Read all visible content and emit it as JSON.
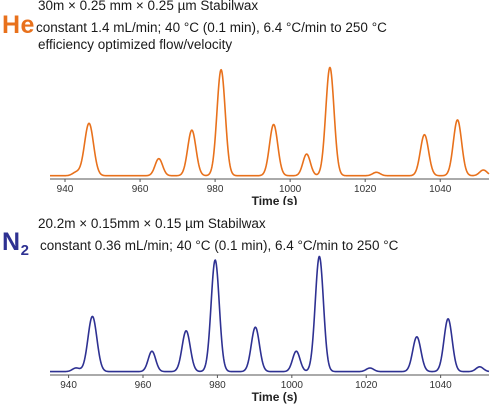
{
  "chart_data": [
    {
      "type": "line",
      "gas_label": "He",
      "gas_sub": "",
      "column": "30m × 0.25 mm × 0.25 µm Stabilwax",
      "conditions": "constant 1.4 mL/min;  40 °C (0.1 min), 6.4 °C/min to 250 °C",
      "note": "efficiency optimized flow/velocity",
      "xlabel": "Time (s)",
      "xlim": [
        936,
        1053
      ],
      "xticks": [
        940,
        960,
        980,
        1000,
        1020,
        1040
      ],
      "ylim": [
        0,
        100
      ],
      "color": "#e8711c",
      "baseline_y": 2,
      "peaks": [
        {
          "x": 946.4,
          "h": 46,
          "w": 1.2
        },
        {
          "x": 965.0,
          "h": 15,
          "w": 1.0
        },
        {
          "x": 973.8,
          "h": 40,
          "w": 1.1
        },
        {
          "x": 981.6,
          "h": 93,
          "w": 1.1
        },
        {
          "x": 995.6,
          "h": 45,
          "w": 1.1
        },
        {
          "x": 1004.4,
          "h": 19,
          "w": 1.0
        },
        {
          "x": 1010.6,
          "h": 95,
          "w": 1.1
        },
        {
          "x": 1035.8,
          "h": 36,
          "w": 1.1
        },
        {
          "x": 1044.6,
          "h": 49,
          "w": 1.1
        },
        {
          "x": 943.0,
          "h": 3,
          "w": 1.0
        },
        {
          "x": 1051.5,
          "h": 5,
          "w": 1.0
        },
        {
          "x": 1023.0,
          "h": 3,
          "w": 1.0
        }
      ]
    },
    {
      "type": "line",
      "gas_label": "N",
      "gas_sub": "2",
      "column": "20.2m × 0.15mm × 0.15 µm Stabilwax",
      "conditions": "constant 0.36 mL/min;  40 °C (0.1 min), 6.4 °C/min to 250 °C",
      "xlabel": "Time (s)",
      "xlim": [
        935,
        1053
      ],
      "xticks": [
        940,
        960,
        980,
        1000,
        1020,
        1040
      ],
      "ylim": [
        0,
        100
      ],
      "color": "#2e3192",
      "baseline_y": 2,
      "peaks": [
        {
          "x": 946.4,
          "h": 46,
          "w": 1.2
        },
        {
          "x": 962.4,
          "h": 17,
          "w": 1.0
        },
        {
          "x": 971.6,
          "h": 34,
          "w": 1.1
        },
        {
          "x": 979.4,
          "h": 93,
          "w": 1.1
        },
        {
          "x": 990.2,
          "h": 37,
          "w": 1.1
        },
        {
          "x": 1001.2,
          "h": 17,
          "w": 1.0
        },
        {
          "x": 1007.4,
          "h": 96,
          "w": 1.1
        },
        {
          "x": 1033.6,
          "h": 29,
          "w": 1.1
        },
        {
          "x": 1042.0,
          "h": 44,
          "w": 1.1
        },
        {
          "x": 942.0,
          "h": 3,
          "w": 1.0
        },
        {
          "x": 1050.5,
          "h": 4,
          "w": 1.0
        },
        {
          "x": 1021.0,
          "h": 3,
          "w": 1.0
        }
      ]
    }
  ]
}
